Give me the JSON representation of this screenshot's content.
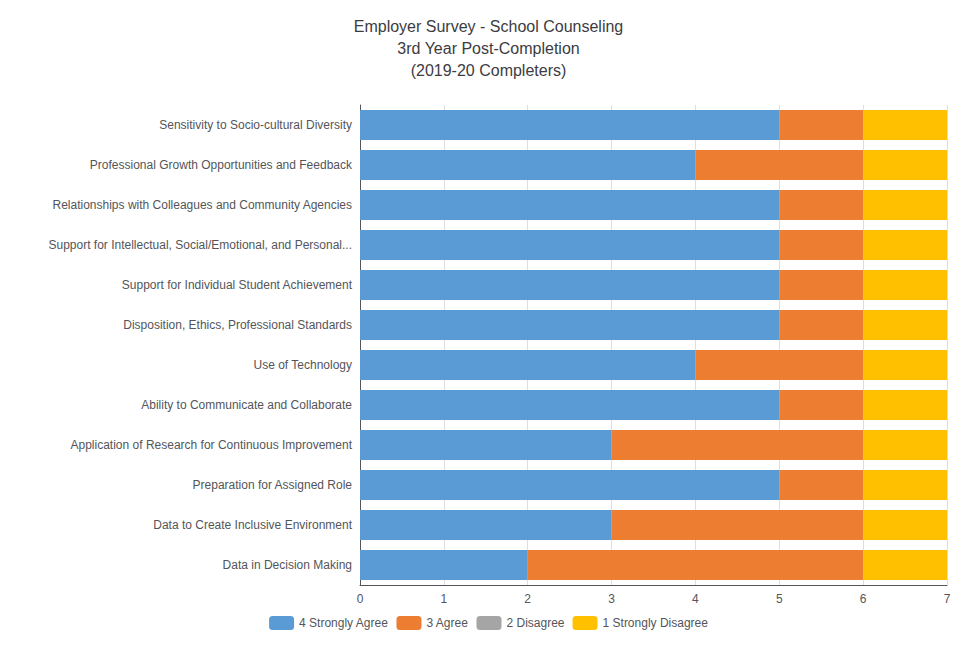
{
  "chart_data": {
    "type": "bar",
    "orientation": "horizontal",
    "stacked": true,
    "title": "Employer Survey - School Counseling\n3rd Year Post-Completion\n(2019-20 Completers)",
    "categories": [
      "Sensitivity to Socio-cultural Diversity",
      "Professional Growth Opportunities and Feedback",
      "Relationships with Colleagues and Community Agencies",
      "Support for Intellectual, Social/Emotional, and Personal...",
      "Support for Individual Student Achievement",
      "Disposition, Ethics, Professional Standards",
      "Use of Technology",
      "Ability to Communicate and Collaborate",
      "Application of Research for Continuous Improvement",
      "Preparation for Assigned Role",
      "Data to Create Inclusive Environment",
      "Data in Decision Making"
    ],
    "series": [
      {
        "name": "4 Strongly Agree",
        "color": "#5B9BD5",
        "values": [
          5,
          4,
          5,
          5,
          5,
          5,
          4,
          5,
          3,
          5,
          3,
          2
        ]
      },
      {
        "name": "3 Agree",
        "color": "#ED7D31",
        "values": [
          1,
          2,
          1,
          1,
          1,
          1,
          2,
          1,
          3,
          1,
          3,
          4
        ]
      },
      {
        "name": "2 Disagree",
        "color": "#A5A5A5",
        "values": [
          0,
          0,
          0,
          0,
          0,
          0,
          0,
          0,
          0,
          0,
          0,
          0
        ]
      },
      {
        "name": "1 Strongly Disagree",
        "color": "#FFC000",
        "values": [
          1,
          1,
          1,
          1,
          1,
          1,
          1,
          1,
          1,
          1,
          1,
          1
        ]
      }
    ],
    "xlim": [
      0,
      7
    ],
    "xticks": [
      0,
      1,
      2,
      3,
      4,
      5,
      6,
      7
    ],
    "grid": true,
    "legend": "bottom"
  }
}
